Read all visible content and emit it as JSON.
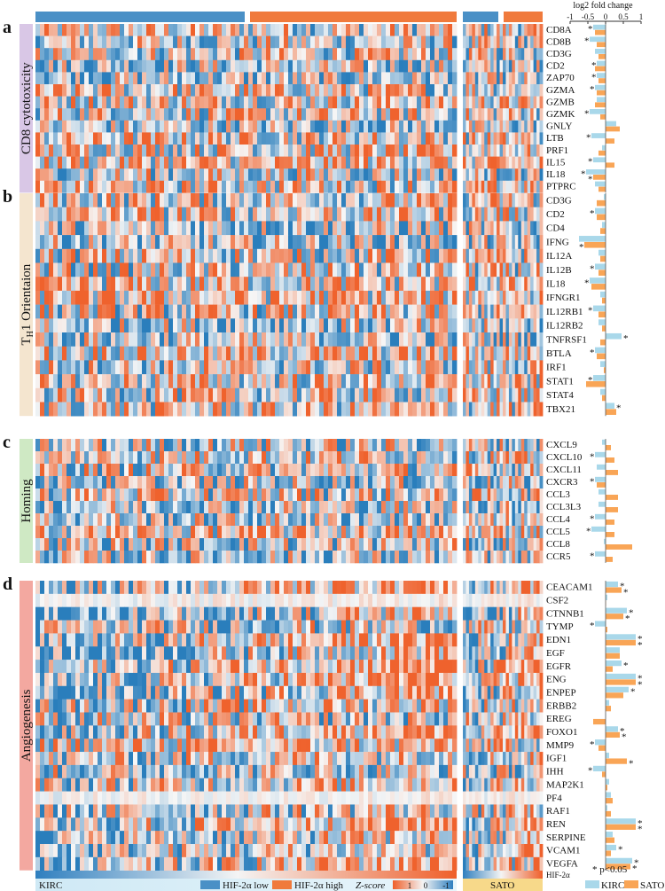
{
  "chart_data": {
    "type": "heatmap",
    "title": "",
    "axis": {
      "title": "log2 fold change",
      "ticks": [
        "-1",
        "-0.5",
        "0",
        "0.5",
        "1"
      ],
      "tick_values": [
        -1,
        -0.5,
        0,
        0.5,
        1
      ],
      "range": [
        -1,
        1
      ]
    },
    "groups": [
      {
        "name": "KIRC",
        "subgroups": [
          "HIF-2α low",
          "HIF-2α high"
        ]
      },
      {
        "name": "SATO",
        "subgroups": [
          "HIF-2α low",
          "HIF-2α high"
        ]
      }
    ],
    "legend": {
      "low": "HIF-2α low",
      "high": "HIF-2α high",
      "zscore_label": "Z-score",
      "z_ticks": [
        "1",
        "0",
        "-1"
      ],
      "significance": "* p<0.05",
      "hif_label": "HIF-2α",
      "kirc_label": "KIRC",
      "sato_label": "SATO"
    },
    "bottom_labels": {
      "left": "KIRC",
      "right": "SATO"
    },
    "colors": {
      "blue": "#4a90c6",
      "orange": "#f07a3c",
      "light_blue": "#a9d8ea",
      "light_orange": "#f9a556",
      "panel_a": "#d9c7e6",
      "panel_b": "#f4e5cf",
      "panel_c": "#cfe9c4",
      "panel_d": "#f3a8a0"
    },
    "panels": [
      {
        "letter": "a",
        "label": "CD8 cytotoxicity",
        "genes": [
          {
            "name": "CD8A",
            "kirc": -0.35,
            "sato": -0.3,
            "kirc_sig": true,
            "sato_sig": false
          },
          {
            "name": "CD8B",
            "kirc": -0.45,
            "sato": -0.25,
            "kirc_sig": true,
            "sato_sig": false
          },
          {
            "name": "CD3G",
            "kirc": -0.3,
            "sato": -0.2,
            "kirc_sig": false,
            "sato_sig": false
          },
          {
            "name": "CD2",
            "kirc": -0.25,
            "sato": -0.3,
            "kirc_sig": true,
            "sato_sig": false
          },
          {
            "name": "ZAP70",
            "kirc": -0.25,
            "sato": -0.2,
            "kirc_sig": true,
            "sato_sig": false
          },
          {
            "name": "GZMA",
            "kirc": -0.3,
            "sato": -0.25,
            "kirc_sig": true,
            "sato_sig": false
          },
          {
            "name": "GZMB",
            "kirc": -0.25,
            "sato": -0.3,
            "kirc_sig": false,
            "sato_sig": false
          },
          {
            "name": "GZMK",
            "kirc": -0.45,
            "sato": -0.15,
            "kirc_sig": true,
            "sato_sig": false
          },
          {
            "name": "GNLY",
            "kirc": 0.3,
            "sato": 0.4,
            "kirc_sig": false,
            "sato_sig": false
          },
          {
            "name": "LTB",
            "kirc": -0.4,
            "sato": 0.25,
            "kirc_sig": true,
            "sato_sig": false
          },
          {
            "name": "PRF1",
            "kirc": -0.1,
            "sato": -0.2,
            "kirc_sig": false,
            "sato_sig": false
          },
          {
            "name": "IL15",
            "kirc": -0.35,
            "sato": 0.25,
            "kirc_sig": true,
            "sato_sig": false
          },
          {
            "name": "IL18",
            "kirc": -0.55,
            "sato": -0.35,
            "kirc_sig": true,
            "sato_sig": true
          },
          {
            "name": "PTPRC",
            "kirc": -0.3,
            "sato": -0.2,
            "kirc_sig": false,
            "sato_sig": false
          }
        ]
      },
      {
        "letter": "b",
        "label": "TH1 Orientaion",
        "label_main": "T",
        "label_sub": "H",
        "label_rest": "1 Orientaion",
        "genes": [
          {
            "name": "CD3G",
            "kirc": -0.05,
            "sato": -0.25,
            "kirc_sig": false,
            "sato_sig": false
          },
          {
            "name": "CD2",
            "kirc": -0.3,
            "sato": -0.25,
            "kirc_sig": true,
            "sato_sig": false
          },
          {
            "name": "CD4",
            "kirc": -0.1,
            "sato": -0.15,
            "kirc_sig": false,
            "sato_sig": false
          },
          {
            "name": "IFNG",
            "kirc": -0.75,
            "sato": -0.6,
            "kirc_sig": false,
            "sato_sig": true
          },
          {
            "name": "IL12A",
            "kirc": -0.2,
            "sato": -0.15,
            "kirc_sig": false,
            "sato_sig": false
          },
          {
            "name": "IL12B",
            "kirc": -0.3,
            "sato": -0.2,
            "kirc_sig": true,
            "sato_sig": false
          },
          {
            "name": "IL18",
            "kirc": -0.45,
            "sato": -0.4,
            "kirc_sig": true,
            "sato_sig": false
          },
          {
            "name": "IFNGR1",
            "kirc": -0.15,
            "sato": -0.1,
            "kirc_sig": false,
            "sato_sig": false
          },
          {
            "name": "IL12RB1",
            "kirc": -0.35,
            "sato": -0.2,
            "kirc_sig": true,
            "sato_sig": false
          },
          {
            "name": "IL12RB2",
            "kirc": -0.2,
            "sato": -0.1,
            "kirc_sig": false,
            "sato_sig": false
          },
          {
            "name": "TNFRSF1",
            "kirc": 0.45,
            "sato": -0.15,
            "kirc_sig": true,
            "sato_sig": false
          },
          {
            "name": "BTLA",
            "kirc": -0.3,
            "sato": -0.25,
            "kirc_sig": true,
            "sato_sig": false
          },
          {
            "name": "IRF1",
            "kirc": -0.15,
            "sato": -0.05,
            "kirc_sig": false,
            "sato_sig": false
          },
          {
            "name": "STAT1",
            "kirc": -0.35,
            "sato": -0.55,
            "kirc_sig": true,
            "sato_sig": false
          },
          {
            "name": "STAT4",
            "kirc": -0.15,
            "sato": -0.1,
            "kirc_sig": false,
            "sato_sig": false
          },
          {
            "name": "TBX21",
            "kirc": 0.25,
            "sato": 0.3,
            "kirc_sig": true,
            "sato_sig": false
          }
        ]
      },
      {
        "letter": "c",
        "label": "Homing",
        "genes": [
          {
            "name": "CXCL9",
            "kirc": -0.1,
            "sato": 0.15,
            "kirc_sig": false,
            "sato_sig": false
          },
          {
            "name": "CXCL10",
            "kirc": -0.3,
            "sato": 0.25,
            "kirc_sig": true,
            "sato_sig": false
          },
          {
            "name": "CXCL11",
            "kirc": -0.25,
            "sato": 0.35,
            "kirc_sig": false,
            "sato_sig": false
          },
          {
            "name": "CXCR3",
            "kirc": -0.3,
            "sato": -0.25,
            "kirc_sig": true,
            "sato_sig": false
          },
          {
            "name": "CCL3",
            "kirc": -0.2,
            "sato": 0.35,
            "kirc_sig": false,
            "sato_sig": false
          },
          {
            "name": "CCL3L3",
            "kirc": -0.2,
            "sato": 0.35,
            "kirc_sig": false,
            "sato_sig": false
          },
          {
            "name": "CCL4",
            "kirc": -0.3,
            "sato": 0.25,
            "kirc_sig": true,
            "sato_sig": false
          },
          {
            "name": "CCL5",
            "kirc": -0.4,
            "sato": 0.25,
            "kirc_sig": true,
            "sato_sig": false
          },
          {
            "name": "CCL8",
            "kirc": -0.05,
            "sato": 0.75,
            "kirc_sig": false,
            "sato_sig": false
          },
          {
            "name": "CCR5",
            "kirc": -0.3,
            "sato": 0.2,
            "kirc_sig": true,
            "sato_sig": false
          }
        ]
      },
      {
        "letter": "d",
        "label": "Angiogenesis",
        "genes": [
          {
            "name": "CEACAM1",
            "kirc": 0.35,
            "sato": 0.45,
            "kirc_sig": true,
            "sato_sig": true
          },
          {
            "name": "CSF2",
            "kirc": 0.05,
            "sato": 0.0,
            "kirc_sig": false,
            "sato_sig": false
          },
          {
            "name": "CTNNB1",
            "kirc": 0.6,
            "sato": 0.5,
            "kirc_sig": true,
            "sato_sig": true
          },
          {
            "name": "TYMP",
            "kirc": -0.3,
            "sato": 0.05,
            "kirc_sig": true,
            "sato_sig": false
          },
          {
            "name": "EDN1",
            "kirc": 0.85,
            "sato": 0.85,
            "kirc_sig": true,
            "sato_sig": true
          },
          {
            "name": "EGF",
            "kirc": 0.4,
            "sato": 0.4,
            "kirc_sig": false,
            "sato_sig": false
          },
          {
            "name": "EGFR",
            "kirc": 0.45,
            "sato": 0.2,
            "kirc_sig": true,
            "sato_sig": false
          },
          {
            "name": "ENG",
            "kirc": 0.85,
            "sato": 0.85,
            "kirc_sig": true,
            "sato_sig": true
          },
          {
            "name": "ENPEP",
            "kirc": 0.65,
            "sato": 0.5,
            "kirc_sig": true,
            "sato_sig": false
          },
          {
            "name": "ERBB2",
            "kirc": 0.1,
            "sato": 0.15,
            "kirc_sig": false,
            "sato_sig": false
          },
          {
            "name": "EREG",
            "kirc": 0.0,
            "sato": -0.35,
            "kirc_sig": false,
            "sato_sig": false
          },
          {
            "name": "FOXO1",
            "kirc": 0.35,
            "sato": 0.4,
            "kirc_sig": true,
            "sato_sig": true
          },
          {
            "name": "MMP9",
            "kirc": -0.3,
            "sato": -0.2,
            "kirc_sig": true,
            "sato_sig": false
          },
          {
            "name": "IGF1",
            "kirc": 0.1,
            "sato": 0.6,
            "kirc_sig": false,
            "sato_sig": true
          },
          {
            "name": "IHH",
            "kirc": -0.35,
            "sato": -0.1,
            "kirc_sig": true,
            "sato_sig": false
          },
          {
            "name": "MAP2K1",
            "kirc": 0.1,
            "sato": 0.05,
            "kirc_sig": false,
            "sato_sig": false
          },
          {
            "name": "PF4",
            "kirc": 0.15,
            "sato": 0.2,
            "kirc_sig": false,
            "sato_sig": false
          },
          {
            "name": "RAF1",
            "kirc": 0.05,
            "sato": 0.15,
            "kirc_sig": false,
            "sato_sig": false
          },
          {
            "name": "REN",
            "kirc": 0.85,
            "sato": 0.85,
            "kirc_sig": true,
            "sato_sig": true
          },
          {
            "name": "SERPINE",
            "kirc": 0.2,
            "sato": 0.25,
            "kirc_sig": false,
            "sato_sig": false
          },
          {
            "name": "VCAM1",
            "kirc": 0.3,
            "sato": 0.15,
            "kirc_sig": true,
            "sato_sig": false
          },
          {
            "name": "VEGFA",
            "kirc": 0.75,
            "sato": 0.7,
            "kirc_sig": true,
            "sato_sig": true
          }
        ]
      }
    ]
  }
}
